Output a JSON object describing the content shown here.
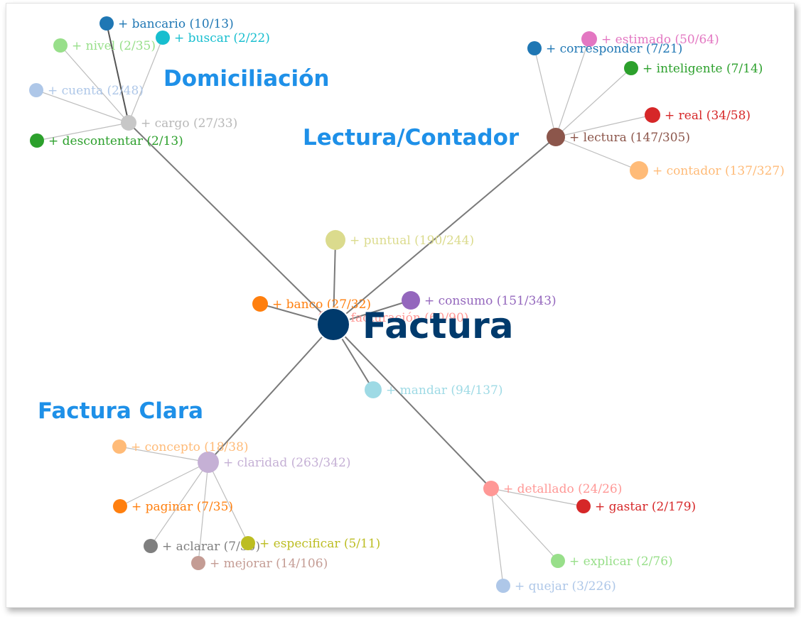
{
  "root": {
    "label": "Factura",
    "color": "#003a6c"
  },
  "clusters": [
    {
      "id": "domiciliacion",
      "label": "Domiciliación",
      "color": "#1e90e8"
    },
    {
      "id": "lectura",
      "label": "Lectura/Contador",
      "color": "#1e90e8"
    },
    {
      "id": "clara",
      "label": "Factura Clara",
      "color": "#1e90e8"
    }
  ],
  "nodes": [
    {
      "id": "cargo",
      "label": "+ cargo (27/33)",
      "color": "#c7c7c7",
      "parent": "root"
    },
    {
      "id": "bancario",
      "label": "+ bancario (10/13)",
      "color": "#1f77b4",
      "parent": "cargo"
    },
    {
      "id": "buscar",
      "label": "+ buscar (2/22)",
      "color": "#17becf",
      "parent": "cargo"
    },
    {
      "id": "nivel",
      "label": "+ nivel (2/35)",
      "color": "#98df8a",
      "parent": "cargo"
    },
    {
      "id": "cuenta",
      "label": "+ cuenta (2/48)",
      "color": "#aec7e8",
      "parent": "cargo"
    },
    {
      "id": "descontentar",
      "label": "+ descontentar (2/13)",
      "color": "#2ca02c",
      "parent": "cargo"
    },
    {
      "id": "lectura",
      "label": "+ lectura (147/305)",
      "color": "#8c564b",
      "parent": "root"
    },
    {
      "id": "estimado",
      "label": "+ estimado (50/64)",
      "color": "#e377c2",
      "parent": "lectura"
    },
    {
      "id": "corresponder",
      "label": "+ corresponder (7/21)",
      "color": "#1f77b4",
      "parent": "lectura"
    },
    {
      "id": "inteligente",
      "label": "+ inteligente (7/14)",
      "color": "#2ca02c",
      "parent": "lectura"
    },
    {
      "id": "real",
      "label": "+ real (34/58)",
      "color": "#d62728",
      "parent": "lectura"
    },
    {
      "id": "contador",
      "label": "+ contador (137/327)",
      "color": "#ffbb78",
      "parent": "lectura"
    },
    {
      "id": "puntual",
      "label": "+ puntual (190/244)",
      "color": "#dbdb8d",
      "parent": "root"
    },
    {
      "id": "consumo",
      "label": "+ consumo (151/343)",
      "color": "#9467bd",
      "parent": "root"
    },
    {
      "id": "banco",
      "label": "+ banco (27/32)",
      "color": "#ff7f0e",
      "parent": "root"
    },
    {
      "id": "facturacion",
      "label": "+ facturación (60/90)",
      "color": "#ff9896",
      "parent": "root"
    },
    {
      "id": "mandar",
      "label": "+ mandar (94/137)",
      "color": "#9edae5",
      "parent": "root"
    },
    {
      "id": "claridad",
      "label": "+ claridad (263/342)",
      "color": "#c5b0d5",
      "parent": "root"
    },
    {
      "id": "concepto",
      "label": "+ concepto (18/38)",
      "color": "#ffbb78",
      "parent": "claridad"
    },
    {
      "id": "paginar",
      "label": "+ paginar (7/35)",
      "color": "#ff7f0e",
      "parent": "claridad"
    },
    {
      "id": "aclarar",
      "label": "+ aclarar (7/30)",
      "color": "#7f7f7f",
      "parent": "claridad"
    },
    {
      "id": "especificar",
      "label": "+ especificar (5/11)",
      "color": "#bcbd22",
      "parent": "claridad"
    },
    {
      "id": "mejorar",
      "label": "+ mejorar (14/106)",
      "color": "#c49c94",
      "parent": "claridad"
    },
    {
      "id": "detallado",
      "label": "+ detallado (24/26)",
      "color": "#ff9896",
      "parent": "root"
    },
    {
      "id": "gastar",
      "label": "+ gastar (2/179)",
      "color": "#d62728",
      "parent": "detallado"
    },
    {
      "id": "explicar",
      "label": "+ explicar (2/76)",
      "color": "#98df8a",
      "parent": "detallado"
    },
    {
      "id": "quejar",
      "label": "+ quejar (3/226)",
      "color": "#aec7e8",
      "parent": "detallado"
    }
  ]
}
